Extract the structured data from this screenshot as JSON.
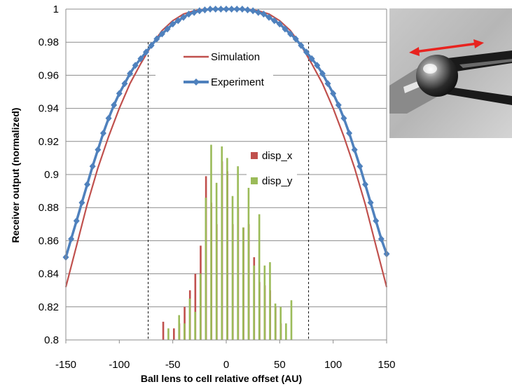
{
  "chart_data": {
    "type": "line",
    "xlabel": "Ball lens to cell relative offset  (AU)",
    "ylabel": "Receiver output (normalized)",
    "xlim": [
      -150,
      150
    ],
    "ylim": [
      0.8,
      1.0
    ],
    "x_ticks": [
      "-150",
      "-100",
      "-50",
      "0",
      "50",
      "100",
      "150"
    ],
    "y_ticks": [
      "0.8",
      "0.82",
      "0.84",
      "0.86",
      "0.88",
      "0.9",
      "0.92",
      "0.94",
      "0.96",
      "0.98",
      "1"
    ],
    "grid": "horizontal",
    "vertical_reference_lines_x": [
      -73,
      77
    ],
    "legend_lines": [
      "Simulation",
      "Experiment"
    ],
    "legend_hist": [
      "disp_x",
      "disp_y"
    ],
    "colors": {
      "simulation": "#c0504d",
      "experiment": "#4f81bd",
      "disp_x": "#c0504d",
      "disp_y": "#9bbb59",
      "grid": "#8c8c8c",
      "arrow": "#e8231f"
    },
    "series": [
      {
        "name": "Simulation",
        "x": [
          -150,
          -140,
          -130,
          -120,
          -110,
          -100,
          -90,
          -80,
          -70,
          -60,
          -50,
          -40,
          -30,
          -20,
          -10,
          0,
          10,
          20,
          30,
          40,
          50,
          60,
          70,
          80,
          90,
          100,
          110,
          120,
          130,
          140,
          150
        ],
        "y": [
          0.832,
          0.857,
          0.882,
          0.904,
          0.923,
          0.94,
          0.955,
          0.967,
          0.978,
          0.987,
          0.993,
          0.997,
          0.999,
          1.0,
          1.0,
          1.0,
          1.0,
          1.0,
          0.999,
          0.997,
          0.993,
          0.987,
          0.978,
          0.967,
          0.955,
          0.94,
          0.923,
          0.904,
          0.882,
          0.857,
          0.832
        ]
      },
      {
        "name": "Experiment",
        "x": [
          -150,
          -145,
          -140,
          -135,
          -130,
          -125,
          -120,
          -115,
          -110,
          -105,
          -100,
          -95,
          -90,
          -85,
          -80,
          -75,
          -70,
          -65,
          -60,
          -55,
          -50,
          -45,
          -40,
          -35,
          -30,
          -25,
          -20,
          -15,
          -10,
          -5,
          0,
          5,
          10,
          15,
          20,
          25,
          30,
          35,
          40,
          45,
          50,
          55,
          60,
          65,
          70,
          75,
          80,
          85,
          90,
          95,
          100,
          105,
          110,
          115,
          120,
          125,
          130,
          135,
          140,
          145,
          150
        ],
        "y": [
          0.85,
          0.861,
          0.872,
          0.883,
          0.894,
          0.905,
          0.915,
          0.925,
          0.934,
          0.942,
          0.949,
          0.955,
          0.961,
          0.966,
          0.97,
          0.974,
          0.978,
          0.982,
          0.985,
          0.988,
          0.991,
          0.993,
          0.995,
          0.997,
          0.998,
          0.999,
          0.9995,
          1.0,
          1.0,
          1.0,
          1.0,
          1.0,
          1.0,
          1.0,
          0.9995,
          0.999,
          0.998,
          0.997,
          0.995,
          0.993,
          0.991,
          0.988,
          0.985,
          0.982,
          0.978,
          0.974,
          0.97,
          0.966,
          0.961,
          0.955,
          0.949,
          0.942,
          0.934,
          0.925,
          0.915,
          0.905,
          0.894,
          0.883,
          0.872,
          0.861,
          0.852
        ]
      }
    ],
    "histograms": [
      {
        "name": "disp_x",
        "bars": [
          [
            -58,
            0.811
          ],
          [
            -48,
            0.807
          ],
          [
            -43,
            0.81
          ],
          [
            -38,
            0.82
          ],
          [
            -33,
            0.83
          ],
          [
            -28,
            0.84
          ],
          [
            -23,
            0.857
          ],
          [
            -18,
            0.899
          ],
          [
            -13,
            0.883
          ],
          [
            -8,
            0.87
          ],
          [
            -3,
            0.908
          ],
          [
            2,
            0.902
          ],
          [
            7,
            0.87
          ],
          [
            12,
            0.88
          ],
          [
            17,
            0.868
          ],
          [
            22,
            0.87
          ],
          [
            27,
            0.85
          ],
          [
            32,
            0.835
          ],
          [
            37,
            0.833
          ],
          [
            42,
            0.83
          ],
          [
            47,
            0.82
          ],
          [
            52,
            0.81
          ]
        ]
      },
      {
        "name": "disp_y",
        "bars": [
          [
            -55,
            0.807
          ],
          [
            -45,
            0.815
          ],
          [
            -40,
            0.81
          ],
          [
            -35,
            0.825
          ],
          [
            -30,
            0.817
          ],
          [
            -25,
            0.84
          ],
          [
            -20,
            0.886
          ],
          [
            -15,
            0.918
          ],
          [
            -10,
            0.895
          ],
          [
            -5,
            0.917
          ],
          [
            0,
            0.91
          ],
          [
            5,
            0.887
          ],
          [
            10,
            0.905
          ],
          [
            15,
            0.868
          ],
          [
            20,
            0.895
          ],
          [
            25,
            0.845
          ],
          [
            30,
            0.876
          ],
          [
            35,
            0.845
          ],
          [
            40,
            0.847
          ],
          [
            45,
            0.822
          ],
          [
            50,
            0.82
          ],
          [
            55,
            0.81
          ],
          [
            60,
            0.824
          ]
        ]
      }
    ]
  },
  "photo": {
    "description_icon": "photo-ball-lens-with-arrow"
  }
}
